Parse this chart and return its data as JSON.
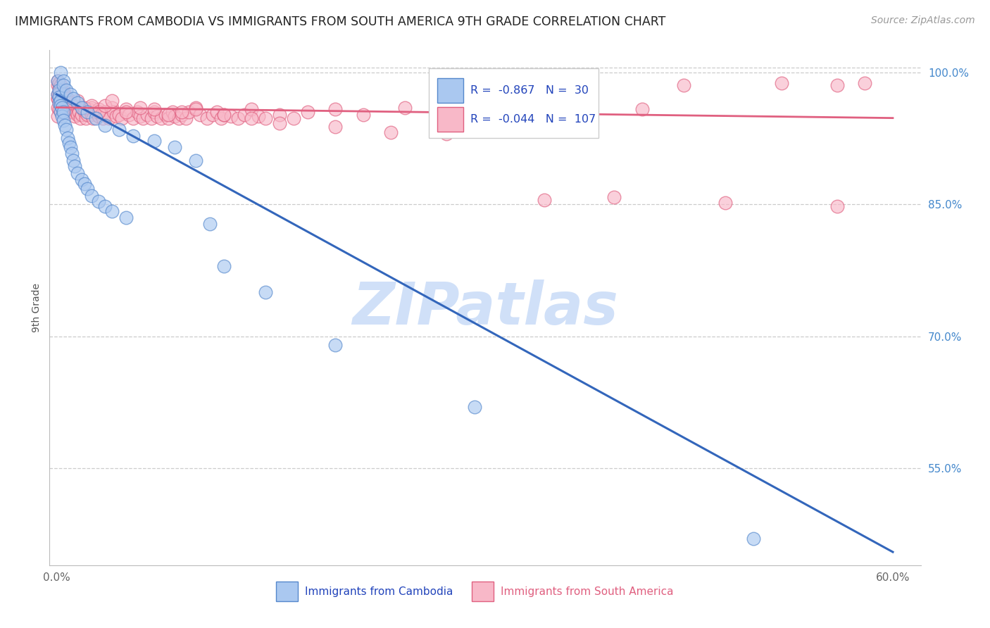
{
  "title": "IMMIGRANTS FROM CAMBODIA VS IMMIGRANTS FROM SOUTH AMERICA 9TH GRADE CORRELATION CHART",
  "source": "Source: ZipAtlas.com",
  "xlabel_blue": "Immigrants from Cambodia",
  "xlabel_pink": "Immigrants from South America",
  "ylabel": "9th Grade",
  "R_blue": -0.867,
  "N_blue": 30,
  "R_pink": -0.044,
  "N_pink": 107,
  "blue_color": "#aac8f0",
  "blue_edge_color": "#5588cc",
  "pink_color": "#f8b8c8",
  "pink_edge_color": "#e06080",
  "blue_line_color": "#3366bb",
  "pink_line_color": "#e06080",
  "watermark_color": "#d0e0f8",
  "blue_line": [
    0.0,
    0.975,
    0.6,
    0.455
  ],
  "pink_line": [
    0.0,
    0.96,
    0.6,
    0.948
  ],
  "blue_x": [
    0.001,
    0.001,
    0.002,
    0.002,
    0.002,
    0.003,
    0.003,
    0.003,
    0.004,
    0.004,
    0.005,
    0.005,
    0.006,
    0.007,
    0.008,
    0.009,
    0.01,
    0.011,
    0.012,
    0.013,
    0.015,
    0.018,
    0.02,
    0.022,
    0.025,
    0.03,
    0.035,
    0.04,
    0.05,
    0.11
  ],
  "blue_y": [
    0.99,
    0.975,
    0.98,
    0.972,
    0.965,
    0.968,
    0.962,
    0.955,
    0.96,
    0.95,
    0.955,
    0.945,
    0.94,
    0.935,
    0.925,
    0.92,
    0.915,
    0.908,
    0.9,
    0.893,
    0.885,
    0.878,
    0.873,
    0.868,
    0.86,
    0.853,
    0.848,
    0.842,
    0.835,
    0.828
  ],
  "pink_x": [
    0.001,
    0.001,
    0.001,
    0.001,
    0.002,
    0.002,
    0.002,
    0.002,
    0.003,
    0.003,
    0.003,
    0.004,
    0.004,
    0.004,
    0.005,
    0.005,
    0.005,
    0.006,
    0.006,
    0.007,
    0.007,
    0.008,
    0.008,
    0.009,
    0.009,
    0.01,
    0.01,
    0.011,
    0.012,
    0.012,
    0.013,
    0.013,
    0.014,
    0.015,
    0.015,
    0.016,
    0.017,
    0.018,
    0.019,
    0.02,
    0.021,
    0.022,
    0.023,
    0.025,
    0.025,
    0.026,
    0.028,
    0.03,
    0.03,
    0.032,
    0.033,
    0.035,
    0.036,
    0.038,
    0.04,
    0.041,
    0.043,
    0.045,
    0.047,
    0.05,
    0.052,
    0.055,
    0.058,
    0.06,
    0.062,
    0.065,
    0.068,
    0.07,
    0.072,
    0.075,
    0.078,
    0.08,
    0.083,
    0.085,
    0.088,
    0.09,
    0.093,
    0.095,
    0.1,
    0.103,
    0.108,
    0.112,
    0.115,
    0.118,
    0.12,
    0.125,
    0.13,
    0.135,
    0.14,
    0.145,
    0.15,
    0.16,
    0.17,
    0.18,
    0.2,
    0.22,
    0.25,
    0.28,
    0.3,
    0.32,
    0.34,
    0.36,
    0.38,
    0.42,
    0.45,
    0.52,
    0.56
  ],
  "pink_y": [
    0.99,
    0.985,
    0.975,
    0.97,
    0.988,
    0.982,
    0.975,
    0.968,
    0.985,
    0.978,
    0.972,
    0.98,
    0.972,
    0.965,
    0.978,
    0.97,
    0.96,
    0.975,
    0.965,
    0.972,
    0.962,
    0.968,
    0.958,
    0.965,
    0.958,
    0.962,
    0.955,
    0.958,
    0.962,
    0.955,
    0.958,
    0.95,
    0.955,
    0.96,
    0.952,
    0.955,
    0.948,
    0.952,
    0.958,
    0.955,
    0.948,
    0.952,
    0.958,
    0.96,
    0.952,
    0.948,
    0.955,
    0.958,
    0.95,
    0.952,
    0.948,
    0.955,
    0.952,
    0.948,
    0.96,
    0.955,
    0.95,
    0.952,
    0.948,
    0.958,
    0.952,
    0.948,
    0.955,
    0.95,
    0.948,
    0.952,
    0.948,
    0.955,
    0.95,
    0.948,
    0.952,
    0.948,
    0.955,
    0.95,
    0.948,
    0.952,
    0.948,
    0.955,
    0.96,
    0.952,
    0.948,
    0.952,
    0.955,
    0.948,
    0.952,
    0.95,
    0.948,
    0.952,
    0.958,
    0.95,
    0.948,
    0.952,
    0.948,
    0.955,
    0.958,
    0.952,
    0.96,
    0.955,
    0.948,
    0.952,
    0.948,
    0.952,
    0.955,
    0.958,
    0.985,
    0.988,
    0.848
  ],
  "xlim": [
    -0.005,
    0.62
  ],
  "ylim": [
    0.44,
    1.025
  ],
  "ytick_positions": [
    0.55,
    0.7,
    0.85,
    1.0
  ],
  "ytick_labels": [
    "55.0%",
    "70.0%",
    "85.0%",
    "100.0%"
  ],
  "xtick_positions": [
    0.0,
    0.1,
    0.2,
    0.3,
    0.4,
    0.5,
    0.6
  ],
  "xtick_labels": [
    "0.0%",
    "",
    "",
    "",
    "",
    "",
    "60.0%"
  ]
}
